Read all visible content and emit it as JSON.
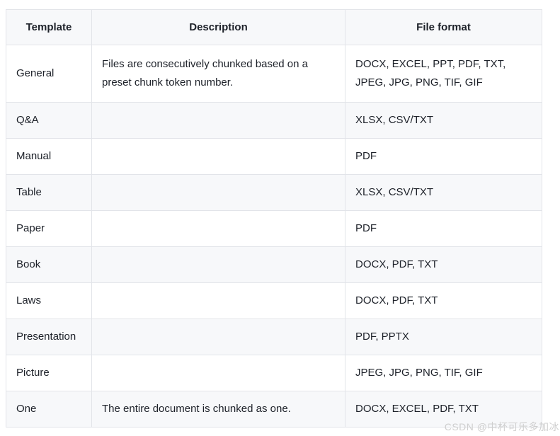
{
  "table": {
    "columns": [
      {
        "key": "template",
        "label": "Template"
      },
      {
        "key": "description",
        "label": "Description"
      },
      {
        "key": "file_format",
        "label": "File format"
      }
    ],
    "rows": [
      {
        "template": "General",
        "description": "Files are consecutively chunked based on a preset chunk token number.",
        "file_format": "DOCX, EXCEL, PPT, PDF, TXT, JPEG, JPG, PNG, TIF, GIF"
      },
      {
        "template": "Q&A",
        "description": "",
        "file_format": "XLSX, CSV/TXT"
      },
      {
        "template": "Manual",
        "description": "",
        "file_format": "PDF"
      },
      {
        "template": "Table",
        "description": "",
        "file_format": "XLSX, CSV/TXT"
      },
      {
        "template": "Paper",
        "description": "",
        "file_format": "PDF"
      },
      {
        "template": "Book",
        "description": "",
        "file_format": "DOCX, PDF, TXT"
      },
      {
        "template": "Laws",
        "description": "",
        "file_format": "DOCX, PDF, TXT"
      },
      {
        "template": "Presentation",
        "description": "",
        "file_format": "PDF, PPTX"
      },
      {
        "template": "Picture",
        "description": "",
        "file_format": "JPEG, JPG, PNG, TIF, GIF"
      },
      {
        "template": "One",
        "description": "The entire document is chunked as one.",
        "file_format": "DOCX, EXCEL, PDF, TXT"
      }
    ]
  },
  "watermark": {
    "text": "CSDN @中杯可乐多加冰"
  },
  "colors": {
    "header_bg": "#f7f8fa",
    "stripe_bg": "#f7f8fa",
    "border": "#e2e4e9",
    "text": "#1d2129",
    "watermark": "#cfcfcf"
  }
}
